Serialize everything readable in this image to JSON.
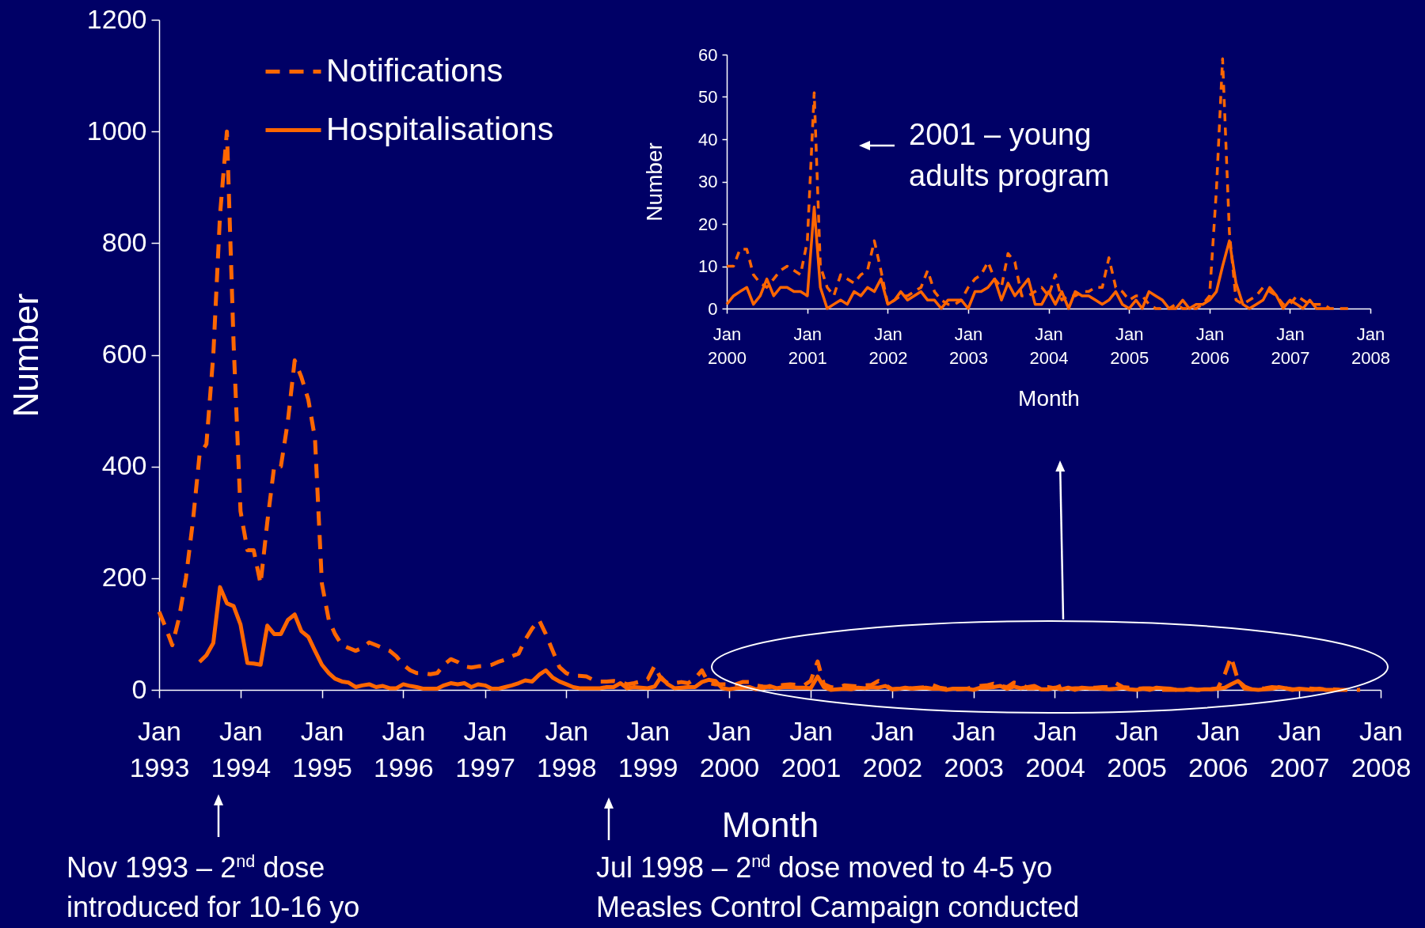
{
  "chart_data": [
    {
      "type": "line",
      "xlabel": "Month",
      "ylabel": "Number",
      "legend": "top left",
      "x": [
        "1993-01",
        "1993-02",
        "1993-03",
        "1993-04",
        "1993-05",
        "1993-06",
        "1993-07",
        "1993-08",
        "1993-09",
        "1993-10",
        "1993-11",
        "1993-12",
        "1994-01",
        "1994-02",
        "1994-03",
        "1994-04",
        "1994-05",
        "1994-06",
        "1994-07",
        "1994-08",
        "1994-09",
        "1994-10",
        "1994-11",
        "1994-12",
        "1995-01",
        "1995-02",
        "1995-03",
        "1995-04",
        "1995-05",
        "1995-06",
        "1995-07",
        "1995-08",
        "1995-09",
        "1995-10",
        "1995-11",
        "1995-12",
        "1996-01",
        "1996-02",
        "1996-03",
        "1996-04",
        "1996-05",
        "1996-06",
        "1996-07",
        "1996-08",
        "1996-09",
        "1996-10",
        "1996-11",
        "1996-12",
        "1997-01",
        "1997-02",
        "1997-03",
        "1997-04",
        "1997-05",
        "1997-06",
        "1997-07",
        "1997-08",
        "1997-09",
        "1997-10",
        "1997-11",
        "1997-12",
        "1998-01",
        "1998-02",
        "1998-03",
        "1998-04",
        "1998-05",
        "1998-06",
        "1998-07",
        "1998-08",
        "1998-09",
        "1998-10",
        "1998-11",
        "1998-12",
        "1999-01",
        "1999-02",
        "1999-03",
        "1999-04",
        "1999-05",
        "1999-06",
        "1999-07",
        "1999-08",
        "1999-09",
        "1999-10",
        "1999-11",
        "1999-12",
        "2000-01",
        "2000-02",
        "2000-03",
        "2000-04",
        "2000-05",
        "2000-06",
        "2000-07",
        "2000-08",
        "2000-09",
        "2000-10",
        "2000-11",
        "2000-12",
        "2001-01",
        "2001-02",
        "2001-03",
        "2001-04",
        "2001-05",
        "2001-06",
        "2001-07",
        "2001-08",
        "2001-09",
        "2001-10",
        "2001-11",
        "2001-12",
        "2002-01",
        "2002-02",
        "2002-03",
        "2002-04",
        "2002-05",
        "2002-06",
        "2002-07",
        "2002-08",
        "2002-09",
        "2002-10",
        "2002-11",
        "2002-12",
        "2003-01",
        "2003-02",
        "2003-03",
        "2003-04",
        "2003-05",
        "2003-06",
        "2003-07",
        "2003-08",
        "2003-09",
        "2003-10",
        "2003-11",
        "2003-12",
        "2004-01",
        "2004-02",
        "2004-03",
        "2004-04",
        "2004-05",
        "2004-06",
        "2004-07",
        "2004-08",
        "2004-09",
        "2004-10",
        "2004-11",
        "2004-12",
        "2005-01",
        "2005-02",
        "2005-03",
        "2005-04",
        "2005-05",
        "2005-06",
        "2005-07",
        "2005-08",
        "2005-09",
        "2005-10",
        "2005-11",
        "2005-12",
        "2006-01",
        "2006-02",
        "2006-03",
        "2006-04",
        "2006-05",
        "2006-06",
        "2006-07",
        "2006-08",
        "2006-09",
        "2006-10",
        "2006-11",
        "2006-12",
        "2007-01",
        "2007-02",
        "2007-03",
        "2007-04",
        "2007-05",
        "2007-06",
        "2007-07",
        "2007-08",
        "2007-09",
        "2007-10"
      ],
      "xlim": [
        "1993-01",
        "2008-01"
      ],
      "xticks": [
        {
          "value": "1993-01",
          "label": "Jan\n1993"
        },
        {
          "value": "1994-01",
          "label": "Jan\n1994"
        },
        {
          "value": "1995-01",
          "label": "Jan\n1995"
        },
        {
          "value": "1996-01",
          "label": "Jan\n1996"
        },
        {
          "value": "1997-01",
          "label": "Jan\n1997"
        },
        {
          "value": "1998-01",
          "label": "Jan\n1998"
        },
        {
          "value": "1999-01",
          "label": "Jan\n1999"
        },
        {
          "value": "2000-01",
          "label": "Jan\n2000"
        },
        {
          "value": "2001-01",
          "label": "Jan\n2001"
        },
        {
          "value": "2002-01",
          "label": "Jan\n2002"
        },
        {
          "value": "2003-01",
          "label": "Jan\n2003"
        },
        {
          "value": "2004-01",
          "label": "Jan\n2004"
        },
        {
          "value": "2005-01",
          "label": "Jan\n2005"
        },
        {
          "value": "2006-01",
          "label": "Jan\n2006"
        },
        {
          "value": "2007-01",
          "label": "Jan\n2007"
        },
        {
          "value": "2008-01",
          "label": "Jan\n2008"
        }
      ],
      "ylim": [
        0,
        1200
      ],
      "yticks": [
        0,
        200,
        400,
        600,
        800,
        1000,
        1200
      ],
      "series": [
        {
          "name": "Notifications",
          "color": "#ff6600",
          "line_style": "dashed",
          "values": [
            140,
            110,
            80,
            130,
            200,
            300,
            420,
            440,
            600,
            850,
            1000,
            620,
            320,
            250,
            250,
            190,
            300,
            400,
            400,
            480,
            590,
            560,
            520,
            450,
            190,
            125,
            100,
            80,
            75,
            70,
            75,
            85,
            80,
            75,
            70,
            60,
            45,
            35,
            30,
            30,
            28,
            30,
            45,
            55,
            50,
            42,
            40,
            42,
            43,
            45,
            50,
            54,
            60,
            65,
            90,
            110,
            125,
            100,
            70,
            41,
            30,
            25,
            25,
            24,
            18,
            15,
            15,
            16,
            14,
            10,
            12,
            15,
            19,
            43,
            20,
            12,
            12,
            14,
            12,
            20,
            35,
            12,
            10,
            10,
            10,
            10,
            14,
            14,
            8,
            6,
            5,
            7,
            9,
            10,
            9,
            8,
            16,
            51,
            10,
            5,
            3,
            8,
            7,
            6,
            8,
            9,
            16,
            9,
            1,
            2,
            3,
            3,
            4,
            5,
            9,
            4,
            2,
            1,
            1,
            2,
            5,
            7,
            8,
            11,
            7,
            5,
            13,
            11,
            3,
            3,
            4,
            5,
            3,
            8,
            2,
            3,
            3,
            4,
            4,
            5,
            5,
            12,
            5,
            4,
            2,
            3,
            3,
            1,
            0,
            0,
            0,
            1,
            0,
            0,
            0,
            1,
            3,
            28,
            59,
            18,
            2,
            1,
            2,
            3,
            5,
            4,
            3,
            1,
            1,
            3,
            2,
            1,
            1,
            1,
            0,
            0,
            0,
            0
          ]
        },
        {
          "name": "Hospitalisations",
          "color": "#ff6600",
          "line_style": "solid",
          "values": [
            null,
            null,
            null,
            null,
            null,
            null,
            50,
            62,
            84,
            184,
            155,
            150,
            117,
            48,
            47,
            45,
            115,
            100,
            100,
            125,
            135,
            105,
            95,
            70,
            45,
            30,
            20,
            15,
            13,
            5,
            8,
            10,
            5,
            7,
            3,
            3,
            10,
            7,
            5,
            2,
            2,
            2,
            8,
            12,
            10,
            12,
            5,
            10,
            8,
            2,
            2,
            5,
            8,
            12,
            17,
            15,
            27,
            35,
            22,
            15,
            10,
            5,
            3,
            3,
            3,
            3,
            5,
            5,
            12,
            3,
            5,
            4,
            3,
            6,
            23,
            10,
            3,
            4,
            5,
            5,
            14,
            18,
            16,
            3,
            1,
            3,
            4,
            5,
            1,
            3,
            7,
            3,
            5,
            5,
            4,
            4,
            3,
            24,
            5,
            0,
            1,
            2,
            1,
            4,
            3,
            5,
            4,
            7,
            1,
            2,
            4,
            2,
            3,
            4,
            2,
            2,
            0,
            2,
            2,
            2,
            0,
            4,
            4,
            5,
            7,
            2,
            6,
            3,
            5,
            7,
            1,
            1,
            4,
            1,
            4,
            0,
            4,
            3,
            3,
            2,
            1,
            2,
            4,
            1,
            0,
            2,
            0,
            4,
            3,
            2,
            0,
            0,
            2,
            0,
            1,
            1,
            2,
            4,
            10,
            16,
            6,
            1,
            0,
            1,
            2,
            5,
            3,
            0,
            2,
            1,
            0,
            2,
            0,
            0,
            0,
            null,
            null,
            null
          ]
        }
      ],
      "annotations": [
        "Nov 1993 – 2$^{nd}$ dose\nintroduced for 10-16 yo",
        "Jul 1998 – 2$^{nd}$ dose moved to 4-5 yo\nMeasles Control Campaign conducted"
      ]
    },
    {
      "type": "line",
      "xlabel": "Month",
      "ylabel": "Number",
      "x": [
        "2000-01",
        "2000-02",
        "2000-03",
        "2000-04",
        "2000-05",
        "2000-06",
        "2000-07",
        "2000-08",
        "2000-09",
        "2000-10",
        "2000-11",
        "2000-12",
        "2001-01",
        "2001-02",
        "2001-03",
        "2001-04",
        "2001-05",
        "2001-06",
        "2001-07",
        "2001-08",
        "2001-09",
        "2001-10",
        "2001-11",
        "2001-12",
        "2002-01",
        "2002-02",
        "2002-03",
        "2002-04",
        "2002-05",
        "2002-06",
        "2002-07",
        "2002-08",
        "2002-09",
        "2002-10",
        "2002-11",
        "2002-12",
        "2003-01",
        "2003-02",
        "2003-03",
        "2003-04",
        "2003-05",
        "2003-06",
        "2003-07",
        "2003-08",
        "2003-09",
        "2003-10",
        "2003-11",
        "2003-12",
        "2004-01",
        "2004-02",
        "2004-03",
        "2004-04",
        "2004-05",
        "2004-06",
        "2004-07",
        "2004-08",
        "2004-09",
        "2004-10",
        "2004-11",
        "2004-12",
        "2005-01",
        "2005-02",
        "2005-03",
        "2005-04",
        "2005-05",
        "2005-06",
        "2005-07",
        "2005-08",
        "2005-09",
        "2005-10",
        "2005-11",
        "2005-12",
        "2006-01",
        "2006-02",
        "2006-03",
        "2006-04",
        "2006-05",
        "2006-06",
        "2006-07",
        "2006-08",
        "2006-09",
        "2006-10",
        "2006-11",
        "2006-12",
        "2007-01",
        "2007-02",
        "2007-03",
        "2007-04",
        "2007-05",
        "2007-06",
        "2007-07",
        "2007-08",
        "2007-09",
        "2007-10"
      ],
      "xlim": [
        "2000-01",
        "2008-01"
      ],
      "xticks": [
        {
          "value": "2000-01",
          "label": "Jan\n2000"
        },
        {
          "value": "2001-01",
          "label": "Jan\n2001"
        },
        {
          "value": "2002-01",
          "label": "Jan\n2002"
        },
        {
          "value": "2003-01",
          "label": "Jan\n2003"
        },
        {
          "value": "2004-01",
          "label": "Jan\n2004"
        },
        {
          "value": "2005-01",
          "label": "Jan\n2005"
        },
        {
          "value": "2006-01",
          "label": "Jan\n2006"
        },
        {
          "value": "2007-01",
          "label": "Jan\n2007"
        },
        {
          "value": "2008-01",
          "label": "Jan\n2008"
        }
      ],
      "ylim": [
        0,
        60
      ],
      "yticks": [
        0,
        10,
        20,
        30,
        40,
        50,
        60
      ],
      "series": [
        {
          "color": "#ff6600",
          "line_style": "dashed",
          "values": [
            10,
            10,
            14,
            14,
            8,
            6,
            5,
            7,
            9,
            10,
            9,
            8,
            16,
            51,
            10,
            5,
            3,
            8,
            7,
            6,
            8,
            9,
            16,
            9,
            1,
            2,
            3,
            3,
            4,
            5,
            9,
            4,
            2,
            1,
            1,
            2,
            5,
            7,
            8,
            11,
            7,
            5,
            13,
            11,
            3,
            3,
            4,
            5,
            3,
            8,
            2,
            3,
            3,
            4,
            4,
            5,
            5,
            12,
            5,
            4,
            2,
            3,
            3,
            1,
            0,
            0,
            0,
            1,
            0,
            0,
            0,
            1,
            3,
            28,
            59,
            18,
            2,
            1,
            2,
            3,
            5,
            4,
            3,
            1,
            1,
            3,
            2,
            1,
            1,
            1,
            0,
            0,
            0,
            0
          ]
        },
        {
          "color": "#ff6600",
          "line_style": "solid",
          "values": [
            1,
            3,
            4,
            5,
            1,
            3,
            7,
            3,
            5,
            5,
            4,
            4,
            3,
            24,
            5,
            0,
            1,
            2,
            1,
            4,
            3,
            5,
            4,
            7,
            1,
            2,
            4,
            2,
            3,
            4,
            2,
            2,
            0,
            2,
            2,
            2,
            0,
            4,
            4,
            5,
            7,
            2,
            6,
            3,
            5,
            7,
            1,
            1,
            4,
            1,
            4,
            0,
            4,
            3,
            3,
            2,
            1,
            2,
            4,
            1,
            0,
            2,
            0,
            4,
            3,
            2,
            0,
            0,
            2,
            0,
            1,
            1,
            2,
            4,
            10,
            16,
            6,
            1,
            0,
            1,
            2,
            5,
            3,
            0,
            2,
            1,
            0,
            2,
            0,
            0,
            0,
            null,
            null,
            null
          ]
        }
      ],
      "annotations": [
        "2001 – young\nadults program"
      ]
    }
  ]
}
